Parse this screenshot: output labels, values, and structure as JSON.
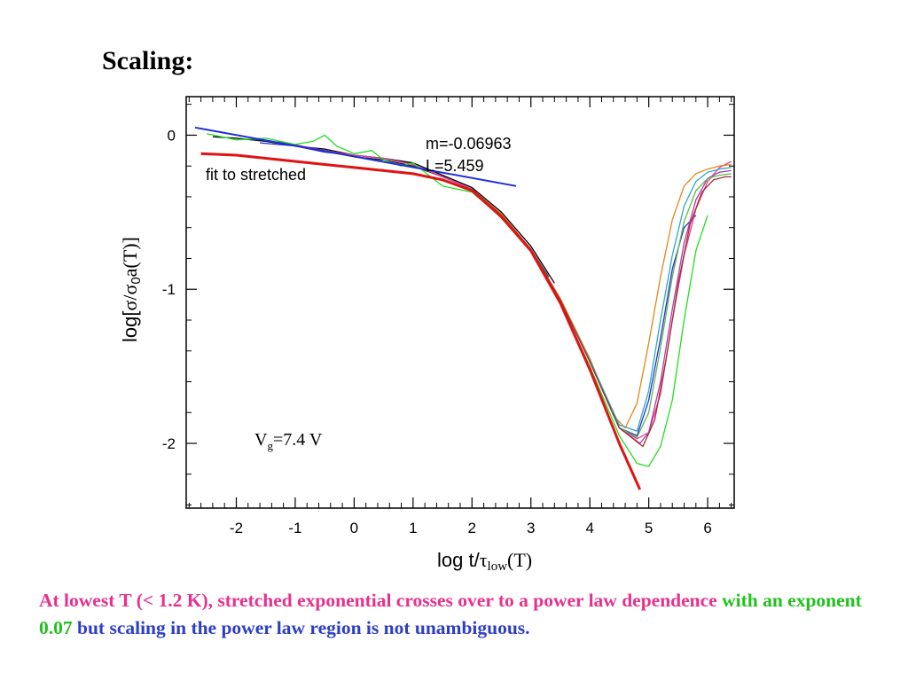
{
  "slide": {
    "title": "Scaling:",
    "caption": {
      "part1": "At lowest T (< 1.2 K), stretched exponential crosses over to a power law dependence",
      "part2": "with an exponent 0.07",
      "part3": "but scaling in the power law region is not unambiguous.",
      "colors": {
        "part1": "#e8308c",
        "part2": "#22c01e",
        "part3": "#2c3ec8"
      }
    }
  },
  "chart_data": {
    "type": "line",
    "xlabel": {
      "main": "log t/",
      "greek": "τ",
      "sub": "low",
      "tail": "(T)"
    },
    "ylabel": {
      "main": "log[",
      "greek1": "σ",
      "slash": "/",
      "greek2": "σ",
      "sub": "0",
      "tail": "a(T)]"
    },
    "xlim": [
      -2.85,
      6.45
    ],
    "ylim": [
      -2.42,
      0.25
    ],
    "xticks": [
      "-2",
      "-1",
      "0",
      "1",
      "2",
      "3",
      "4",
      "5",
      "6"
    ],
    "yticks": [
      "0",
      "-1",
      "-2"
    ],
    "annotations": {
      "slope": "m=-0.06963",
      "intercept": "L=5.459",
      "fit_label": "fit to stretched",
      "gate_main": "V",
      "gate_sub": "g",
      "gate_value": "=7.4 V"
    },
    "series": [
      {
        "color": "#000000",
        "x": [
          -2.4,
          -2,
          -1.5,
          -1,
          -0.5,
          0,
          0.5,
          1,
          1.5,
          2,
          2.5,
          3,
          3.4
        ],
        "y": [
          -0.01,
          -0.02,
          -0.04,
          -0.07,
          -0.09,
          -0.13,
          -0.15,
          -0.18,
          -0.26,
          -0.34,
          -0.5,
          -0.72,
          -0.96
        ]
      },
      {
        "color": "#1a1a1a",
        "x": [
          -2,
          -1.5,
          -1,
          -0.5,
          0,
          0.5,
          1,
          1.5,
          2,
          2.5,
          3,
          3.3
        ],
        "y": [
          -0.02,
          -0.04,
          -0.07,
          -0.1,
          -0.14,
          -0.16,
          -0.2,
          -0.27,
          -0.35,
          -0.52,
          -0.74,
          -0.92
        ]
      },
      {
        "color": "#2b2bd6",
        "x": [
          -1.6,
          -1,
          -0.5,
          0,
          0.5,
          1,
          1.5,
          2,
          2.5,
          3,
          3.5,
          4,
          4.5,
          4.8,
          5,
          5.2,
          5.4,
          5.6,
          5.8
        ],
        "y": [
          -0.05,
          -0.07,
          -0.11,
          -0.13,
          -0.15,
          -0.19,
          -0.27,
          -0.35,
          -0.52,
          -0.74,
          -1.07,
          -1.47,
          -1.9,
          -1.95,
          -1.72,
          -1.32,
          -0.87,
          -0.6,
          -0.52
        ]
      },
      {
        "color": "#e63c8f",
        "x": [
          -1.3,
          -0.5,
          0,
          0.5,
          1,
          1.5,
          2,
          2.5,
          3,
          3.5,
          4,
          4.5,
          4.8,
          5,
          5.2,
          5.4,
          5.6,
          5.8,
          6,
          6.2,
          6.4
        ],
        "y": [
          -0.04,
          -0.1,
          -0.13,
          -0.15,
          -0.19,
          -0.27,
          -0.35,
          -0.52,
          -0.74,
          -1.07,
          -1.47,
          -1.9,
          -1.97,
          -1.93,
          -1.68,
          -1.2,
          -0.78,
          -0.48,
          -0.3,
          -0.21,
          -0.17
        ]
      },
      {
        "color": "#e3871a",
        "x": [
          2,
          2.5,
          3,
          3.5,
          4,
          4.4,
          4.6,
          4.8,
          5,
          5.2,
          5.4,
          5.6,
          5.8,
          6,
          6.2,
          6.4
        ],
        "y": [
          -0.35,
          -0.51,
          -0.74,
          -1.06,
          -1.45,
          -1.82,
          -1.9,
          -1.74,
          -1.35,
          -0.92,
          -0.55,
          -0.33,
          -0.25,
          -0.22,
          -0.2,
          -0.19
        ]
      },
      {
        "color": "#2aa8c9",
        "x": [
          2,
          2.5,
          3,
          3.5,
          4,
          4.5,
          4.8,
          5,
          5.2,
          5.4,
          5.6,
          5.8,
          6,
          6.2,
          6.4
        ],
        "y": [
          -0.35,
          -0.52,
          -0.74,
          -1.07,
          -1.46,
          -1.88,
          -1.92,
          -1.66,
          -1.2,
          -0.78,
          -0.46,
          -0.3,
          -0.24,
          -0.22,
          -0.21
        ]
      },
      {
        "color": "#b03aa8",
        "x": [
          2,
          2.5,
          3,
          3.5,
          4,
          4.5,
          4.85,
          5,
          5.2,
          5.4,
          5.6,
          5.8,
          6,
          6.2,
          6.4
        ],
        "y": [
          -0.35,
          -0.52,
          -0.74,
          -1.07,
          -1.47,
          -1.9,
          -2.0,
          -1.93,
          -1.6,
          -1.13,
          -0.7,
          -0.42,
          -0.28,
          -0.24,
          -0.23
        ]
      },
      {
        "color": "#5ab84e",
        "x": [
          2,
          2.5,
          3,
          3.5,
          4,
          4.5,
          4.8,
          5,
          5.2,
          5.4,
          5.6,
          5.8,
          6,
          6.2,
          6.4
        ],
        "y": [
          -0.35,
          -0.52,
          -0.74,
          -1.07,
          -1.47,
          -1.9,
          -1.96,
          -1.8,
          -1.38,
          -0.92,
          -0.56,
          -0.36,
          -0.28,
          -0.26,
          -0.25
        ]
      },
      {
        "color": "#a03030",
        "x": [
          2,
          2.5,
          3,
          3.5,
          4,
          4.5,
          4.9,
          5.1,
          5.3,
          5.5,
          5.7,
          5.9,
          6.1,
          6.3,
          6.4
        ],
        "y": [
          -0.35,
          -0.52,
          -0.74,
          -1.07,
          -1.47,
          -1.9,
          -2.02,
          -1.85,
          -1.44,
          -0.96,
          -0.58,
          -0.37,
          -0.29,
          -0.27,
          -0.27
        ]
      },
      {
        "color": "#22dd22",
        "x": [
          -2.5,
          -2,
          -1.5,
          -1,
          -0.7,
          -0.5,
          -0.3,
          0,
          0.3,
          0.5,
          0.8,
          1,
          1.5,
          2,
          2.5,
          3,
          3.5,
          4,
          4.5,
          4.8,
          5,
          5.2,
          5.4,
          5.6,
          5.8,
          6
        ],
        "y": [
          0.01,
          -0.03,
          -0.02,
          -0.06,
          -0.04,
          0.0,
          -0.07,
          -0.12,
          -0.1,
          -0.16,
          -0.2,
          -0.18,
          -0.33,
          -0.37,
          -0.53,
          -0.75,
          -1.09,
          -1.5,
          -1.95,
          -2.13,
          -2.15,
          -2.02,
          -1.72,
          -1.2,
          -0.75,
          -0.52
        ]
      },
      {
        "color": "#e11212",
        "width": 3,
        "x": [
          -2.6,
          -2,
          -1.5,
          -1,
          -0.5,
          0,
          0.5,
          1,
          1.5,
          2,
          2.5,
          3,
          3.5,
          4,
          4.5,
          4.85
        ],
        "y": [
          -0.12,
          -0.13,
          -0.15,
          -0.17,
          -0.19,
          -0.21,
          -0.23,
          -0.25,
          -0.29,
          -0.36,
          -0.53,
          -0.75,
          -1.09,
          -1.52,
          -2.0,
          -2.3
        ]
      },
      {
        "color": "#1e2ed6",
        "width": 2,
        "x": [
          -2.7,
          2.75
        ],
        "y": [
          0.05,
          -0.33
        ]
      }
    ]
  }
}
